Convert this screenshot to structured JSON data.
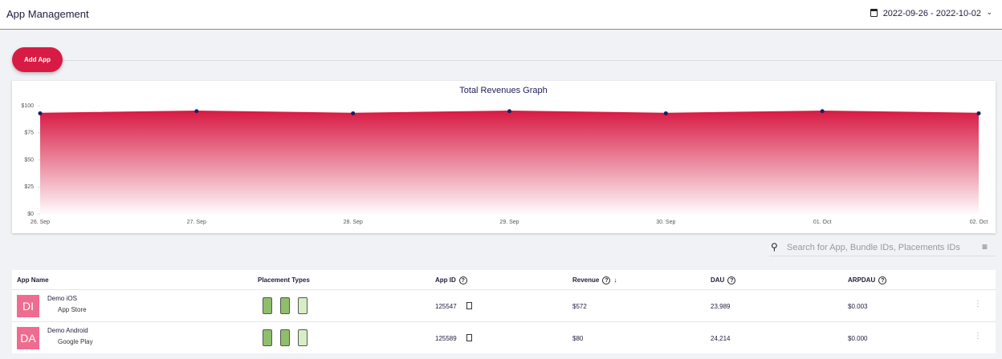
{
  "header": {
    "title": "App Management",
    "date_range": "2022-09-26 - 2022-10-02"
  },
  "add_button": "Add App",
  "chart_data": {
    "type": "area",
    "title": "Total Revenues Graph",
    "categories": [
      "26. Sep",
      "27. Sep",
      "28. Sep",
      "29. Sep",
      "30. Sep",
      "01. Oct",
      "02. Oct"
    ],
    "values": [
      93,
      95,
      93,
      95,
      93,
      95,
      93
    ],
    "ylim": [
      0,
      100
    ],
    "yticks": [
      {
        "value": 0,
        "label": "$0"
      },
      {
        "value": 25,
        "label": "$25"
      },
      {
        "value": 50,
        "label": "$50"
      },
      {
        "value": 75,
        "label": "$75"
      },
      {
        "value": 100,
        "label": "$100"
      }
    ],
    "color": "#d81b44"
  },
  "search_placeholder": "Search for App, Bundle IDs, Placements IDs",
  "table": {
    "columns": [
      "App Name",
      "Placement Types",
      "App ID",
      "Revenue",
      "DAU",
      "ARPDAU"
    ],
    "rows": [
      {
        "initials": "DI",
        "name": "Demo iOS",
        "store": "App Store",
        "app_id": "125547",
        "revenue": "$572",
        "dau": "23,989",
        "arpdau": "$0.003"
      },
      {
        "initials": "DA",
        "name": "Demo Android",
        "store": "Google Play",
        "app_id": "125589",
        "revenue": "$80",
        "dau": "24,214",
        "arpdau": "$0.000"
      }
    ]
  }
}
